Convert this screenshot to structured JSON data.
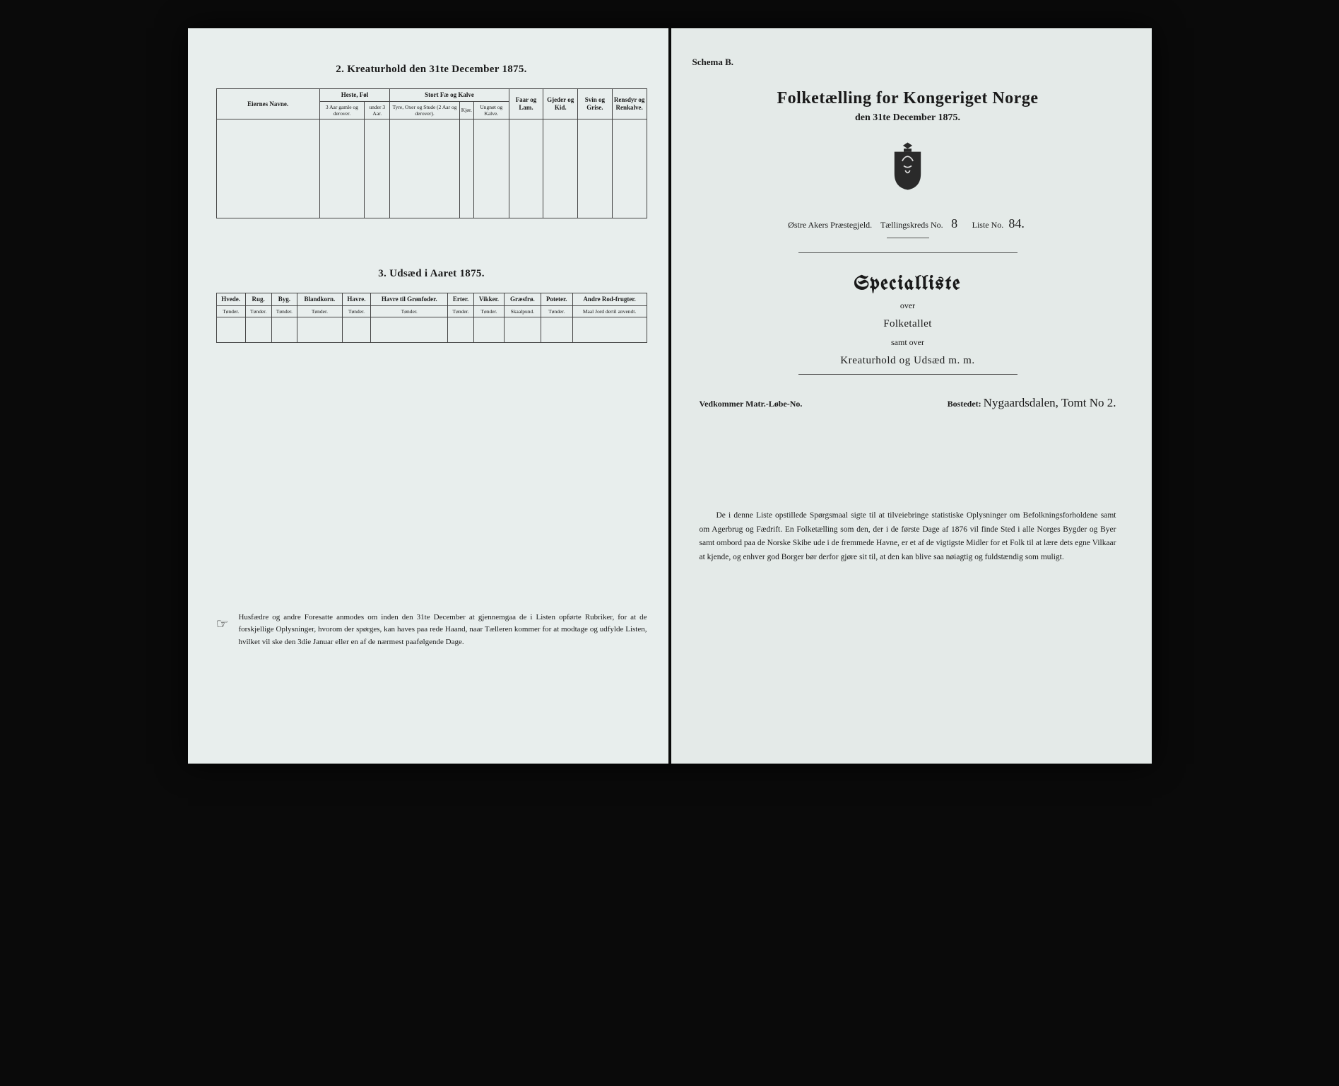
{
  "colors": {
    "page_bg_left": "#e8eeed",
    "page_bg_right": "#e4eae8",
    "frame_bg": "#0a0a0a",
    "text": "#1a1a1a",
    "rule": "#444444"
  },
  "left": {
    "section2": {
      "title": "2. Kreaturhold den 31te December 1875.",
      "headers": {
        "name": "Eiernes Navne.",
        "horses": "Heste, Føl",
        "horses_a": "3 Aar gamle og derover.",
        "horses_b": "under 3 Aar.",
        "cattle": "Stort Fæ og Kalve",
        "cattle_a": "Tyre, Oxer og Stude (2 Aar og derover).",
        "cattle_b": "Kjør.",
        "cattle_c": "Ungnøt og Kalve.",
        "sheep": "Faar og Lam.",
        "goats": "Gjeder og Kid.",
        "pigs": "Svin og Grise.",
        "reindeer": "Rensdyr og Renkalve."
      }
    },
    "section3": {
      "title": "3. Udsæd i Aaret 1875.",
      "columns": [
        {
          "label": "Hvede.",
          "unit": "Tønder."
        },
        {
          "label": "Rug.",
          "unit": "Tønder."
        },
        {
          "label": "Byg.",
          "unit": "Tønder."
        },
        {
          "label": "Blandkorn.",
          "unit": "Tønder."
        },
        {
          "label": "Havre.",
          "unit": "Tønder."
        },
        {
          "label": "Havre til Grønfoder.",
          "unit": "Tønder."
        },
        {
          "label": "Erter.",
          "unit": "Tønder."
        },
        {
          "label": "Vikker.",
          "unit": "Tønder."
        },
        {
          "label": "Græsfrø.",
          "unit": "Skaalpund."
        },
        {
          "label": "Poteter.",
          "unit": "Tønder."
        },
        {
          "label": "Andre Rod-frugter.",
          "unit": "Maal Jord dertil anvendt."
        }
      ]
    },
    "footnote": "Husfædre og andre Foresatte anmodes om inden den 31te December at gjennemgaa de i Listen opførte Rubriker, for at de forskjellige Oplysninger, hvorom der spørges, kan haves paa rede Haand, naar Tælleren kommer for at modtage og udfylde Listen, hvilket vil ske den 3die Januar eller en af de nærmest paafølgende Dage."
  },
  "right": {
    "schema": "Schema B.",
    "main_title": "Folketælling for Kongeriget Norge",
    "date_line": "den 31te December 1875.",
    "parish_label": "Østre Akers Præstegjeld.",
    "district_label": "Tællingskreds No.",
    "district_val": "8",
    "list_label": "Liste No.",
    "list_val": "84.",
    "special": "Specialliste",
    "over": "over",
    "folketallet": "Folketallet",
    "samt": "samt over",
    "kreatur": "Kreaturhold og Udsæd m. m.",
    "matr_label": "Vedkommer Matr.-Løbe-No.",
    "matr_val": "",
    "bosted_label": "Bostedet:",
    "bosted_val": "Nygaardsdalen, Tomt No 2.",
    "intro": "De i denne Liste opstillede Spørgsmaal sigte til at tilveiebringe statistiske Oplysninger om Befolkningsforholdene samt om Agerbrug og Fædrift. En Folketælling som den, der i de første Dage af 1876 vil finde Sted i alle Norges Bygder og Byer samt ombord paa de Norske Skibe ude i de fremmede Havne, er et af de vigtigste Midler for et Folk til at lære dets egne Vilkaar at kjende, og enhver god Borger bør derfor gjøre sit til, at den kan blive saa nøiagtig og fuldstændig som muligt."
  }
}
